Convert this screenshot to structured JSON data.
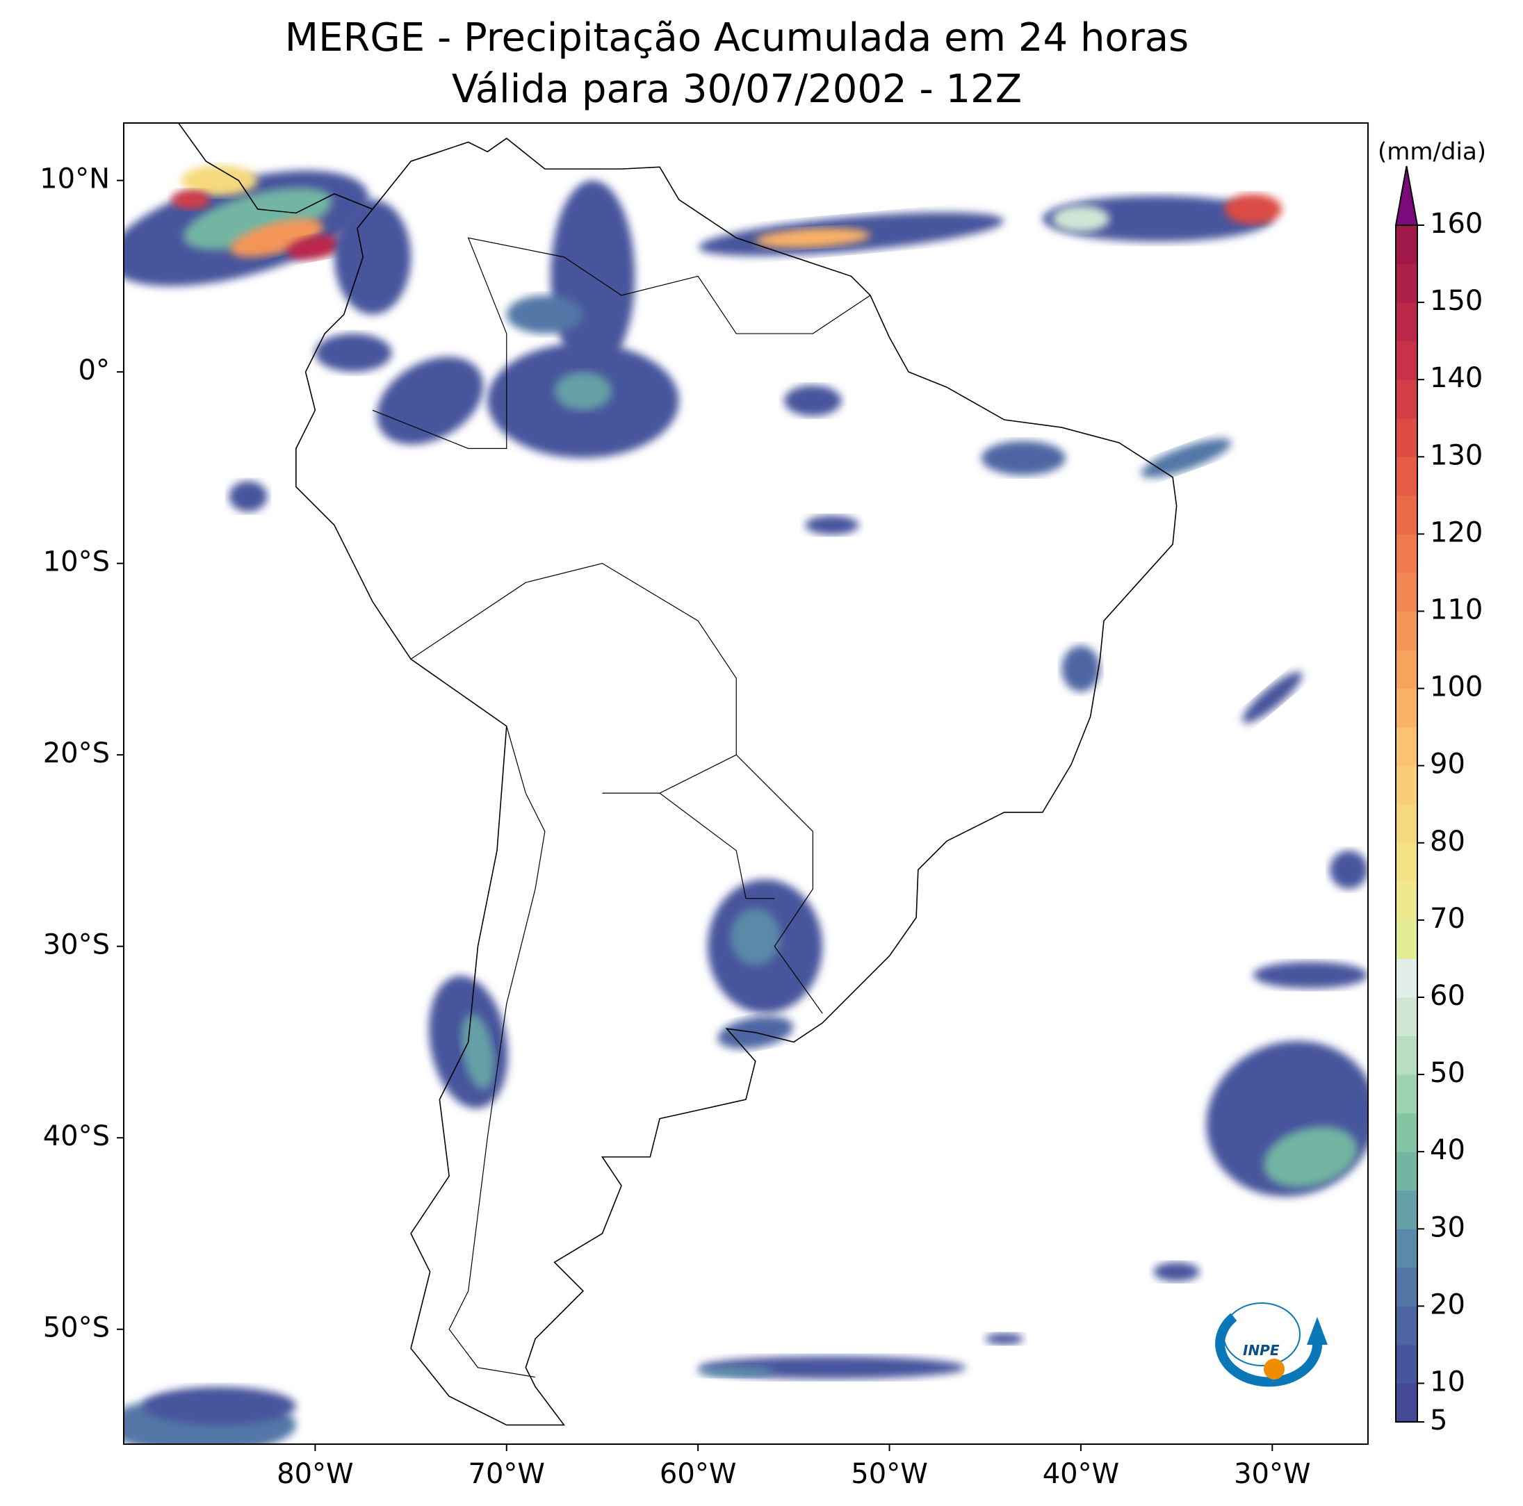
{
  "chart_data": {
    "type": "map",
    "title": "MERGE - Precipitação Acumulada em 24 horas",
    "subtitle": "Válida para 30/07/2002 - 12Z",
    "xlim": [
      -90,
      -25
    ],
    "ylim": [
      -56,
      13
    ],
    "xticks": [
      {
        "value": -80,
        "label": "80°W"
      },
      {
        "value": -70,
        "label": "70°W"
      },
      {
        "value": -60,
        "label": "60°W"
      },
      {
        "value": -50,
        "label": "50°W"
      },
      {
        "value": -40,
        "label": "40°W"
      },
      {
        "value": -30,
        "label": "30°W"
      }
    ],
    "yticks": [
      {
        "value": 10,
        "label": "10°N"
      },
      {
        "value": 0,
        "label": "0°"
      },
      {
        "value": -10,
        "label": "10°S"
      },
      {
        "value": -20,
        "label": "20°S"
      },
      {
        "value": -30,
        "label": "30°S"
      },
      {
        "value": -40,
        "label": "40°S"
      },
      {
        "value": -50,
        "label": "50°S"
      }
    ],
    "colorbar": {
      "label": "(mm/dia)",
      "clim": [
        5,
        160
      ],
      "ticks": [
        5,
        10,
        20,
        30,
        40,
        50,
        60,
        70,
        80,
        90,
        100,
        110,
        120,
        130,
        140,
        150,
        160
      ],
      "colors": [
        "#434994",
        "#47559c",
        "#4d66a3",
        "#5277a6",
        "#5a8aa8",
        "#65a0a6",
        "#72b5a3",
        "#85c5a4",
        "#9fd2ae",
        "#b8ddbf",
        "#cfe6d5",
        "#e2efe8",
        "#e5ec98",
        "#eee98e",
        "#f3e385",
        "#f6d97e",
        "#f8cf78",
        "#fac271",
        "#f9b266",
        "#f7a35e",
        "#f49558",
        "#f18853",
        "#ee7a4d",
        "#ea6b48",
        "#e45c45",
        "#dc4c45",
        "#d23e46",
        "#c83248",
        "#bb2849",
        "#ad204a",
        "#a0184a"
      ],
      "extend_color": "#7d0a7d"
    },
    "logo": "INPE"
  }
}
